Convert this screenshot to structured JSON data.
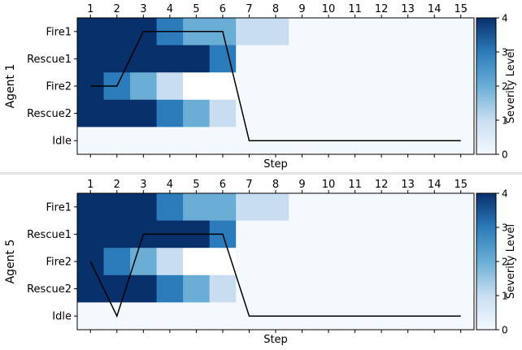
{
  "chart_data": [
    {
      "type": "heatmap",
      "ylabel": "Agent 1",
      "xlabel": "Step",
      "x": [
        1,
        2,
        3,
        4,
        5,
        6,
        7,
        8,
        9,
        10,
        11,
        12,
        13,
        14,
        15
      ],
      "rows": [
        "Fire1",
        "Rescue1",
        "Fire2",
        "Rescue2",
        "Idle"
      ],
      "cells": [
        [
          4,
          4,
          4,
          3,
          2,
          2,
          1,
          1,
          0,
          0,
          0,
          0,
          0,
          0,
          0
        ],
        [
          4,
          4,
          4,
          4,
          4,
          3,
          0,
          0,
          0,
          0,
          0,
          0,
          0,
          0,
          0
        ],
        [
          4,
          3,
          2,
          1,
          null,
          null,
          0,
          0,
          0,
          0,
          0,
          0,
          0,
          0,
          0
        ],
        [
          4,
          4,
          4,
          3,
          2,
          1,
          0,
          0,
          0,
          0,
          0,
          0,
          0,
          0,
          0
        ],
        [
          0,
          0,
          0,
          0,
          0,
          0,
          0,
          0,
          0,
          0,
          0,
          0,
          0,
          0,
          0
        ]
      ],
      "trajectory": [
        {
          "step": 1,
          "row": "Fire2"
        },
        {
          "step": 2,
          "row": "Fire2"
        },
        {
          "step": 3,
          "row": "Fire1"
        },
        {
          "step": 6,
          "row": "Fire1"
        },
        {
          "step": 7,
          "row": "Idle"
        },
        {
          "step": 15,
          "row": "Idle"
        }
      ],
      "colorbar": {
        "label": "Severity Level",
        "ticks": [
          0,
          1,
          2,
          3,
          4
        ],
        "range": [
          0,
          4
        ]
      },
      "colormap": "Blues"
    },
    {
      "type": "heatmap",
      "ylabel": "Agent 5",
      "xlabel": "Step",
      "x": [
        1,
        2,
        3,
        4,
        5,
        6,
        7,
        8,
        9,
        10,
        11,
        12,
        13,
        14,
        15
      ],
      "rows": [
        "Fire1",
        "Rescue1",
        "Fire2",
        "Rescue2",
        "Idle"
      ],
      "cells": [
        [
          4,
          4,
          4,
          3,
          2,
          2,
          1,
          1,
          0,
          0,
          0,
          0,
          0,
          0,
          0
        ],
        [
          4,
          4,
          4,
          4,
          4,
          3,
          0,
          0,
          0,
          0,
          0,
          0,
          0,
          0,
          0
        ],
        [
          4,
          3,
          2,
          1,
          null,
          null,
          0,
          0,
          0,
          0,
          0,
          0,
          0,
          0,
          0
        ],
        [
          4,
          4,
          4,
          3,
          2,
          1,
          0,
          0,
          0,
          0,
          0,
          0,
          0,
          0,
          0
        ],
        [
          0,
          0,
          0,
          0,
          0,
          0,
          0,
          0,
          0,
          0,
          0,
          0,
          0,
          0,
          0
        ]
      ],
      "trajectory": [
        {
          "step": 1,
          "row": "Fire2"
        },
        {
          "step": 2,
          "row": "Idle"
        },
        {
          "step": 3,
          "row": "Rescue1"
        },
        {
          "step": 6,
          "row": "Rescue1"
        },
        {
          "step": 7,
          "row": "Idle"
        },
        {
          "step": 15,
          "row": "Idle"
        }
      ],
      "colorbar": {
        "label": "Severity Level",
        "ticks": [
          0,
          1,
          2,
          3,
          4
        ],
        "range": [
          0,
          4
        ]
      },
      "colormap": "Blues"
    }
  ],
  "colors": {
    "level0": "#f4f9fe",
    "level1": "#c9ddf1",
    "level2": "#6aaed6",
    "level3": "#2c7bba",
    "level4": "#08306b",
    "missing": "#ffffff",
    "trajectory": "#000000"
  }
}
